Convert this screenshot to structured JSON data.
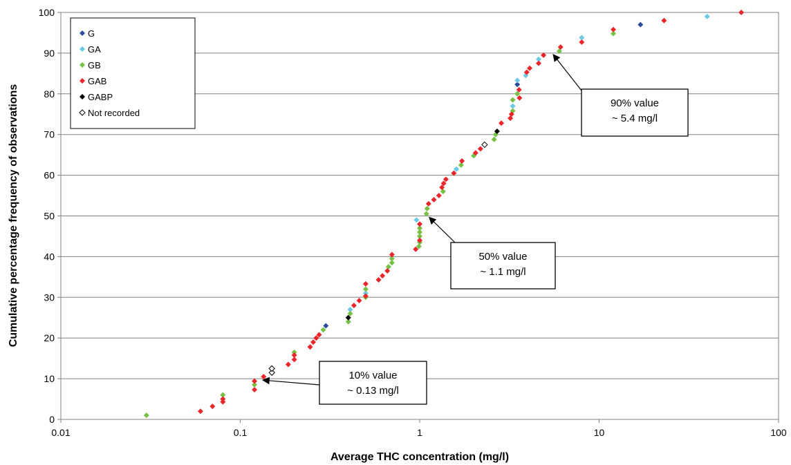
{
  "chart_data": {
    "type": "scatter",
    "xlabel": "Average THC concentration (mg/l)",
    "ylabel": "Cumulative percentage frequency of observations",
    "xscale": "log",
    "xlim": [
      0.01,
      100
    ],
    "ylim": [
      0,
      100
    ],
    "xticks": [
      0.01,
      0.1,
      1,
      10,
      100
    ],
    "xtick_labels": [
      "0.01",
      "0.1",
      "1",
      "10",
      "100"
    ],
    "yticks": [
      0,
      10,
      20,
      30,
      40,
      50,
      60,
      70,
      80,
      90,
      100
    ],
    "ytick_labels": [
      "0",
      "10",
      "20",
      "30",
      "40",
      "50",
      "60",
      "70",
      "80",
      "90",
      "100"
    ],
    "grid": "horizontal",
    "legend_position": "top-left",
    "series": [
      {
        "name": "G",
        "color": "#2e4c9c",
        "marker": "diamond-filled",
        "points": [
          [
            0.3,
            23.0
          ],
          [
            3.5,
            82.3
          ],
          [
            17.0,
            97.0
          ]
        ]
      },
      {
        "name": "GA",
        "color": "#6cc9e3",
        "marker": "diamond-filled",
        "points": [
          [
            0.41,
            27.0
          ],
          [
            0.5,
            31.0
          ],
          [
            0.96,
            49.0
          ],
          [
            1.6,
            61.5
          ],
          [
            3.3,
            77.0
          ],
          [
            3.5,
            83.3
          ],
          [
            3.9,
            84.5
          ],
          [
            4.6,
            88.5
          ],
          [
            8.0,
            93.8
          ],
          [
            40.0,
            99.0
          ]
        ]
      },
      {
        "name": "GB",
        "color": "#77c043",
        "marker": "diamond-filled",
        "points": [
          [
            0.03,
            1.0
          ],
          [
            0.08,
            6.0
          ],
          [
            0.12,
            8.5
          ],
          [
            0.2,
            16.5
          ],
          [
            0.29,
            22.0
          ],
          [
            0.4,
            24.0
          ],
          [
            0.41,
            26.0
          ],
          [
            0.5,
            32.0
          ],
          [
            0.5,
            30.0
          ],
          [
            0.67,
            37.5
          ],
          [
            0.7,
            38.5
          ],
          [
            0.7,
            39.5
          ],
          [
            0.99,
            42.5
          ],
          [
            1.0,
            43.5
          ],
          [
            1.0,
            45.0
          ],
          [
            1.0,
            46.0
          ],
          [
            1.0,
            47.0
          ],
          [
            1.09,
            50.5
          ],
          [
            1.1,
            51.8
          ],
          [
            1.35,
            56.0
          ],
          [
            1.7,
            62.5
          ],
          [
            2.0,
            64.8
          ],
          [
            2.6,
            68.8
          ],
          [
            2.65,
            70.0
          ],
          [
            3.3,
            75.8
          ],
          [
            3.3,
            78.5
          ],
          [
            3.5,
            80.0
          ],
          [
            6.0,
            90.5
          ],
          [
            12.0,
            94.8
          ]
        ]
      },
      {
        "name": "GAB",
        "color": "#e8262b",
        "marker": "diamond-filled",
        "points": [
          [
            0.06,
            2.0
          ],
          [
            0.07,
            3.2
          ],
          [
            0.08,
            4.3
          ],
          [
            0.08,
            5.0
          ],
          [
            0.12,
            7.3
          ],
          [
            0.12,
            9.4
          ],
          [
            0.135,
            10.5
          ],
          [
            0.185,
            13.5
          ],
          [
            0.2,
            14.7
          ],
          [
            0.2,
            15.8
          ],
          [
            0.245,
            17.8
          ],
          [
            0.255,
            19.0
          ],
          [
            0.265,
            20.0
          ],
          [
            0.275,
            20.8
          ],
          [
            0.43,
            28.0
          ],
          [
            0.46,
            29.2
          ],
          [
            0.5,
            30.3
          ],
          [
            0.5,
            33.3
          ],
          [
            0.59,
            34.3
          ],
          [
            0.62,
            35.3
          ],
          [
            0.66,
            36.5
          ],
          [
            0.7,
            40.5
          ],
          [
            0.95,
            41.8
          ],
          [
            1.0,
            44.0
          ],
          [
            1.0,
            48.0
          ],
          [
            1.12,
            53.0
          ],
          [
            1.2,
            54.0
          ],
          [
            1.28,
            55.0
          ],
          [
            1.33,
            57.0
          ],
          [
            1.36,
            58.0
          ],
          [
            1.4,
            59.0
          ],
          [
            1.55,
            60.5
          ],
          [
            1.72,
            63.5
          ],
          [
            2.05,
            65.5
          ],
          [
            2.18,
            66.5
          ],
          [
            2.85,
            72.8
          ],
          [
            3.2,
            74.0
          ],
          [
            3.25,
            75.0
          ],
          [
            3.58,
            81.0
          ],
          [
            3.6,
            79.0
          ],
          [
            3.95,
            85.3
          ],
          [
            4.1,
            86.3
          ],
          [
            4.6,
            87.5
          ],
          [
            4.9,
            89.5
          ],
          [
            6.1,
            91.5
          ],
          [
            8.0,
            92.7
          ],
          [
            12.0,
            95.8
          ],
          [
            23.0,
            98.0
          ],
          [
            62.0,
            100.0
          ]
        ]
      },
      {
        "name": "GABP",
        "color": "#000000",
        "marker": "diamond-filled",
        "points": [
          [
            0.4,
            25.0
          ],
          [
            2.7,
            70.8
          ]
        ]
      },
      {
        "name": "Not recorded",
        "color": "#000000",
        "marker": "diamond-open",
        "points": [
          [
            0.15,
            11.5
          ],
          [
            0.15,
            12.5
          ],
          [
            2.3,
            67.5
          ]
        ]
      }
    ],
    "annotations": [
      {
        "lines": [
          "10% value",
          "~ 0.13 mg/l"
        ],
        "arrow_to": [
          0.13,
          10
        ]
      },
      {
        "lines": [
          "50% value",
          "~ 1.1 mg/l"
        ],
        "arrow_to": [
          1.1,
          50
        ]
      },
      {
        "lines": [
          "90% value",
          "~ 5.4 mg/l"
        ],
        "arrow_to": [
          5.4,
          90
        ]
      }
    ]
  }
}
